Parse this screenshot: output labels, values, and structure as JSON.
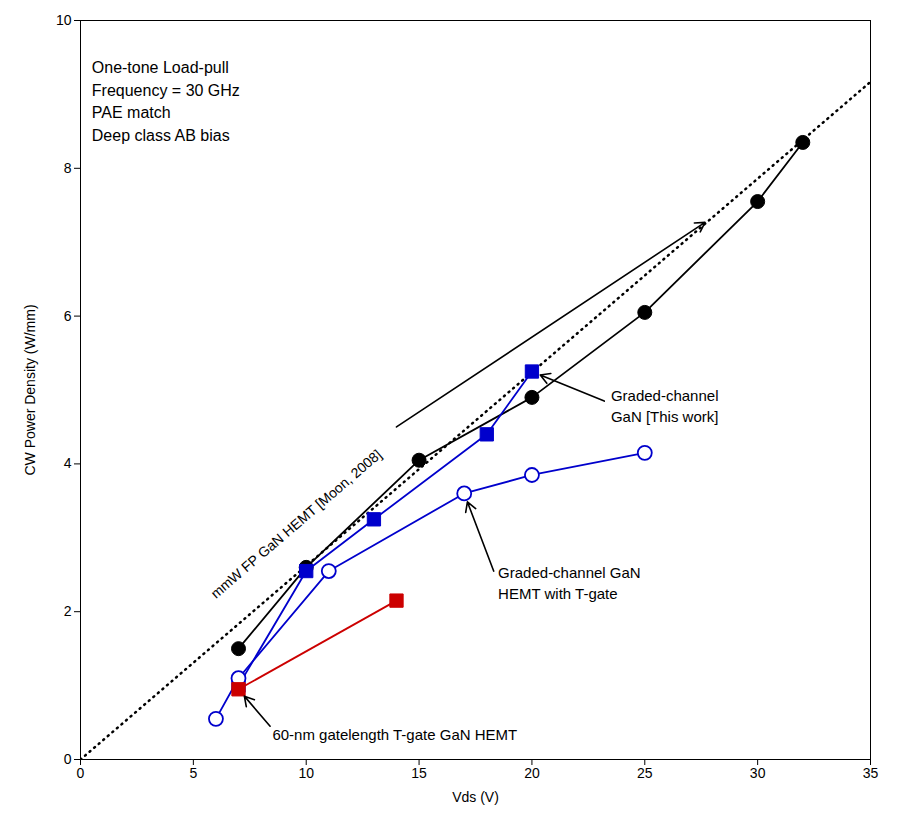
{
  "chart_data": {
    "type": "line",
    "xlabel": "Vds (V)",
    "ylabel": "CW Power Density (W/mm)",
    "xlim": [
      0,
      35
    ],
    "ylim": [
      0,
      10
    ],
    "xticks": [
      0,
      5,
      10,
      15,
      20,
      25,
      30,
      35
    ],
    "yticks": [
      0,
      2,
      4,
      6,
      8,
      10
    ],
    "grid": false,
    "series": [
      {
        "x": [
          0,
          35
        ],
        "values": [
          0,
          9.17
        ],
        "color": "#000000",
        "marker": "none",
        "line_style": "dotted"
      },
      {
        "x": [
          7,
          10,
          15,
          20,
          25,
          30,
          32
        ],
        "values": [
          1.5,
          2.6,
          4.05,
          4.9,
          6.05,
          7.55,
          8.35
        ],
        "color": "#000000",
        "marker": "circle",
        "line_style": "solid"
      },
      {
        "x": [
          7,
          10,
          13,
          18,
          20
        ],
        "values": [
          1.0,
          2.55,
          3.25,
          4.4,
          5.25
        ],
        "color": "#0000cc",
        "marker": "square",
        "line_style": "solid"
      },
      {
        "x": [
          6,
          7,
          11,
          17,
          20,
          25
        ],
        "values": [
          0.55,
          1.1,
          2.55,
          3.6,
          3.85,
          4.15
        ],
        "color": "#0000cc",
        "marker": "open_circle",
        "line_style": "solid"
      },
      {
        "x": [
          7,
          14
        ],
        "values": [
          0.95,
          2.15
        ],
        "color": "#cc0000",
        "marker": "square",
        "line_style": "solid"
      }
    ],
    "annotations": [
      "One-tone Load-pull\nFrequency = 30 GHz\nPAE match\nDeep class AB bias",
      "mmW FP GaN HEMT [Moon, 2008]",
      "Graded-channel\nGaN [This work]",
      "Graded-channel GaN\nHEMT with T-gate",
      "60-nm gatelength T-gate GaN HEMT"
    ]
  }
}
